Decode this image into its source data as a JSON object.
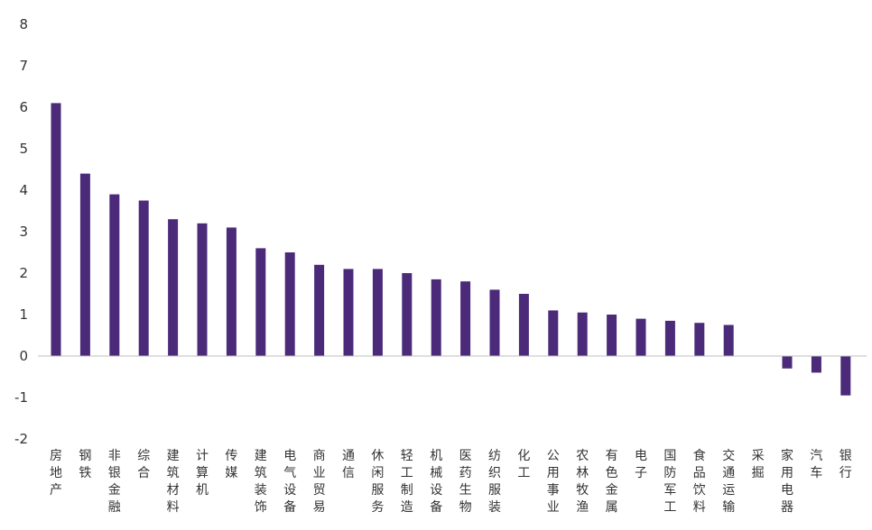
{
  "chart_data": {
    "type": "bar",
    "title": "",
    "xlabel": "",
    "ylabel": "",
    "ylim": [
      -2,
      8
    ],
    "yticks": [
      "8",
      "7",
      "6",
      "5",
      "4",
      "3",
      "2",
      "1",
      "0",
      "-1",
      "-2"
    ],
    "grid": false,
    "legend": "none",
    "bar_color": "#4b2a7a",
    "categories": [
      "房地产",
      "钢铁",
      "非银金融",
      "综合",
      "建筑材料",
      "计算机",
      "传媒",
      "建筑装饰",
      "电气设备",
      "商业贸易",
      "通信",
      "休闲服务",
      "轻工制造",
      "机械设备",
      "医药生物",
      "纺织服装",
      "化工",
      "公用事业",
      "农林牧渔",
      "有色金属",
      "电子",
      "国防军工",
      "食品饮料",
      "交通运输",
      "采掘",
      "家用电器",
      "汽车",
      "银行"
    ],
    "values": [
      6.1,
      4.4,
      3.9,
      3.75,
      3.3,
      3.2,
      3.1,
      2.6,
      2.5,
      2.2,
      2.1,
      2.1,
      2.0,
      1.85,
      1.8,
      1.6,
      1.5,
      1.1,
      1.05,
      1.0,
      0.9,
      0.85,
      0.8,
      0.75,
      0.0,
      -0.3,
      -0.4,
      -0.95
    ]
  }
}
